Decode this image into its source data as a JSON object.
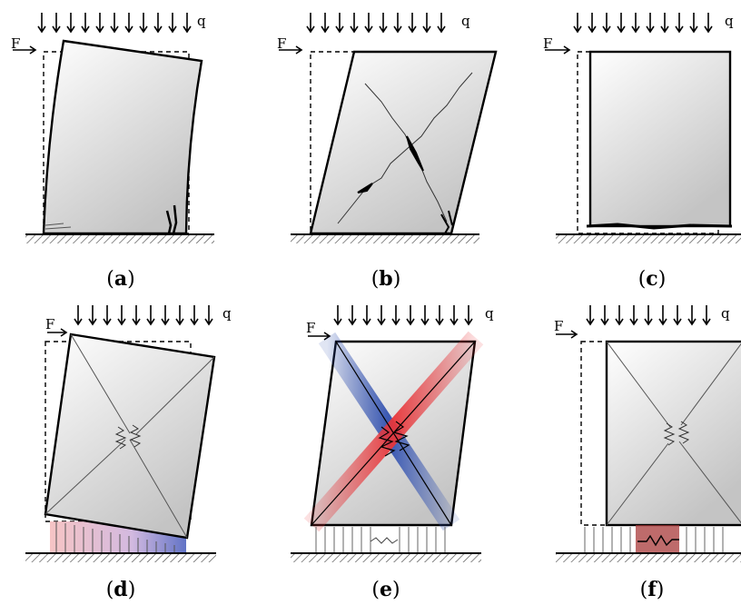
{
  "panels": [
    {
      "id": "a",
      "caption_open": "(",
      "caption_letter": "a",
      "caption_close": ")"
    },
    {
      "id": "b",
      "caption_open": "(",
      "caption_letter": "b",
      "caption_close": ")"
    },
    {
      "id": "c",
      "caption_open": "(",
      "caption_letter": "c",
      "caption_close": ")"
    },
    {
      "id": "d",
      "caption_open": "(",
      "caption_letter": "d",
      "caption_close": ")"
    },
    {
      "id": "e",
      "caption_open": "(",
      "caption_letter": "e",
      "caption_close": ")"
    },
    {
      "id": "f",
      "caption_open": "(",
      "caption_letter": "f",
      "caption_close": ")"
    }
  ],
  "load_label": "q",
  "force_label": "F",
  "colors": {
    "tension": "#e8363a",
    "compression": "#3050b0",
    "outline": "#000000",
    "fill_light": "#ffffff",
    "fill_dark": "#c9c9c9"
  }
}
